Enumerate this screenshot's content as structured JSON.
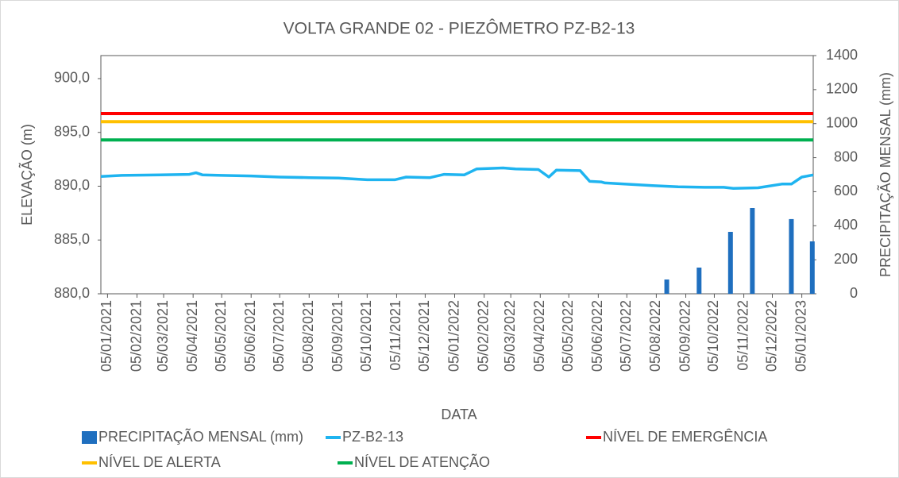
{
  "chart_data": {
    "type": "combo",
    "title": "VOLTA GRANDE 02 - PIEZÔMETRO PZ-B2-13",
    "xlabel": "DATA",
    "ylabel": "ELEVAÇÃO (m)",
    "y2label": "PRECIPITAÇÃO MENSAL (mm)",
    "xlim": [
      "29/12/2020",
      "17/01/2023"
    ],
    "xticks": [
      "05/01/2021",
      "05/02/2021",
      "05/03/2021",
      "05/04/2021",
      "05/05/2021",
      "05/06/2021",
      "05/07/2021",
      "05/08/2021",
      "05/09/2021",
      "05/10/2021",
      "05/11/2021",
      "05/12/2021",
      "05/01/2022",
      "05/02/2022",
      "05/03/2022",
      "05/04/2022",
      "05/05/2022",
      "05/06/2022",
      "05/07/2022",
      "05/08/2022",
      "05/09/2022",
      "05/10/2022",
      "05/11/2022",
      "05/12/2022",
      "05/01/2023"
    ],
    "ylim": [
      880,
      902.14
    ],
    "yticks": [
      {
        "value": 880,
        "label": "880,0"
      },
      {
        "value": 885,
        "label": "885,0"
      },
      {
        "value": 890,
        "label": "890,0"
      },
      {
        "value": 895,
        "label": "895,0"
      },
      {
        "value": 900,
        "label": "900,0"
      }
    ],
    "y2lim": [
      0,
      1400
    ],
    "y2ticks": [
      0,
      200,
      400,
      600,
      800,
      1000,
      1200,
      1400
    ],
    "series": [
      {
        "name": "PRECIPITAÇÃO MENSAL (mm)",
        "type": "bar",
        "axis": "y2",
        "color": "#1f6fbf",
        "x": [
          "16/08/2022",
          "19/09/2022",
          "22/10/2022",
          "14/11/2022",
          "25/12/2022",
          "16/01/2023"
        ],
        "values": [
          84,
          154,
          364,
          504,
          439,
          308
        ]
      },
      {
        "name": "PZ-B2-13",
        "type": "line",
        "color": "#1fb4f0",
        "x": [
          "29/12/2020",
          "20/01/2021",
          "01/03/2021",
          "01/04/2021",
          "08/04/2021",
          "15/04/2021",
          "05/05/2021",
          "05/06/2021",
          "05/07/2021",
          "05/08/2021",
          "05/09/2021",
          "05/10/2021",
          "03/11/2021",
          "15/11/2021",
          "10/12/2021",
          "25/12/2021",
          "15/01/2022",
          "28/01/2022",
          "25/02/2022",
          "10/03/2022",
          "03/04/2022",
          "14/04/2022",
          "22/04/2022",
          "17/05/2022",
          "27/05/2022",
          "08/06/2022",
          "12/06/2022",
          "01/08/2022",
          "28/08/2022",
          "25/09/2022",
          "15/10/2022",
          "25/10/2022",
          "20/11/2022",
          "15/12/2022",
          "25/12/2022",
          "05/01/2023",
          "17/01/2023"
        ],
        "values": [
          890.9,
          891.0,
          891.05,
          891.1,
          891.25,
          891.05,
          891.0,
          890.95,
          890.85,
          890.8,
          890.75,
          890.6,
          890.6,
          890.85,
          890.8,
          891.1,
          891.05,
          891.6,
          891.7,
          891.6,
          891.55,
          890.85,
          891.5,
          891.45,
          890.45,
          890.4,
          890.3,
          890.05,
          889.95,
          889.9,
          889.9,
          889.8,
          889.85,
          890.2,
          890.2,
          890.85,
          891.05
        ]
      },
      {
        "name": "NÍVEL DE EMERGÊNCIA",
        "type": "level",
        "color": "#ff0000",
        "value": 896.75
      },
      {
        "name": "NÍVEL DE ALERTA",
        "type": "level",
        "color": "#ffc000",
        "value": 896.0
      },
      {
        "name": "NÍVEL DE ATENÇÃO",
        "type": "level",
        "color": "#00b050",
        "value": 894.3
      }
    ]
  }
}
